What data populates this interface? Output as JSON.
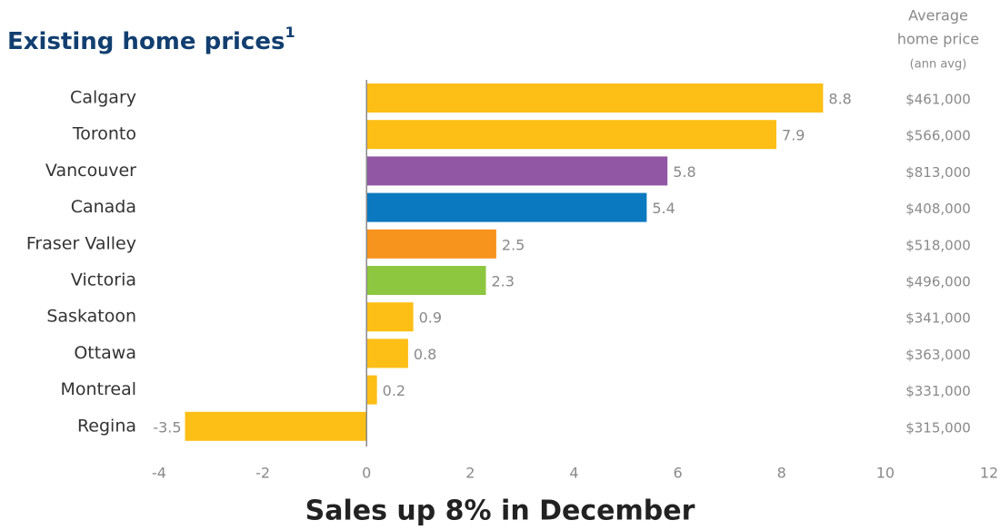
{
  "chart_data": {
    "type": "bar",
    "orientation": "horizontal",
    "title": "Existing home prices",
    "title_superscript": "1",
    "categories": [
      "Calgary",
      "Toronto",
      "Vancouver",
      "Canada",
      "Fraser Valley",
      "Victoria",
      "Saskatoon",
      "Ottawa",
      "Montreal",
      "Regina"
    ],
    "values": [
      8.8,
      7.9,
      5.8,
      5.4,
      2.5,
      2.3,
      0.9,
      0.8,
      0.2,
      -3.5
    ],
    "colors": [
      "#fdbe15",
      "#fdbe15",
      "#9157a5",
      "#0b79c0",
      "#f7941d",
      "#8dc63f",
      "#fdbe15",
      "#fdbe15",
      "#fdbe15",
      "#fdbe15"
    ],
    "xlim": [
      -4,
      12
    ],
    "xticks": [
      -4,
      -2,
      0,
      2,
      4,
      6,
      8,
      10,
      12
    ],
    "column_header": [
      "Average",
      "home price",
      "(ann avg)"
    ],
    "column_values": [
      "$461,000",
      "$566,000",
      "$813,000",
      "$408,000",
      "$518,000",
      "$496,000",
      "$341,000",
      "$363,000",
      "$331,000",
      "$315,000"
    ],
    "footer_title": "Sales up 8% in December"
  }
}
